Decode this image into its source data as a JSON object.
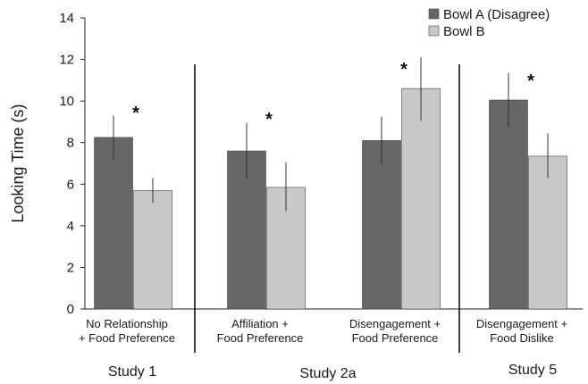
{
  "chart_data": {
    "type": "bar",
    "ylabel": "Looking Time (s)",
    "ylim": [
      0,
      14
    ],
    "yticks": [
      0,
      2,
      4,
      6,
      8,
      10,
      12,
      14
    ],
    "grid": false,
    "legend_position": "top-right",
    "categories": [
      [
        "No Relationship",
        "+ Food Preference"
      ],
      [
        "Affiliation +",
        "Food Preference"
      ],
      [
        "Disengagement +",
        "Food Preference"
      ],
      [
        "Disengagement +",
        "Food Dislike"
      ]
    ],
    "series": [
      {
        "name": "Bowl A (Disagree)",
        "color": "#666666",
        "values": [
          8.25,
          7.6,
          8.1,
          10.05
        ],
        "error_low": [
          7.2,
          6.25,
          6.95,
          8.75
        ],
        "error_high": [
          9.3,
          8.95,
          9.25,
          11.35
        ]
      },
      {
        "name": "Bowl B",
        "color": "#c8c8c8",
        "values": [
          5.7,
          5.85,
          10.6,
          7.35
        ],
        "error_low": [
          5.1,
          4.7,
          9.05,
          6.3
        ],
        "error_high": [
          6.3,
          7.05,
          12.1,
          8.45
        ]
      }
    ],
    "significance": [
      "*",
      "*",
      "*",
      "*"
    ],
    "studies": [
      "Study 1",
      "Study 2a",
      "Study 5"
    ]
  }
}
